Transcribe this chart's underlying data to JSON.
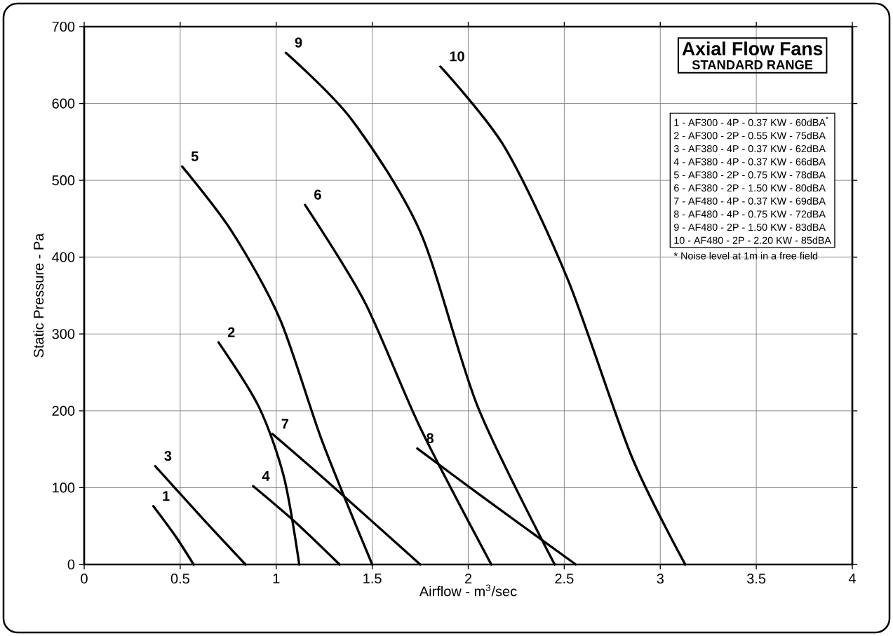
{
  "chart_data": {
    "type": "line",
    "title": "Axial Flow Fans",
    "subtitle": "STANDARD RANGE",
    "xlabel": "Airflow - m$^{3}$/sec",
    "ylabel": "Static Pressure - Pa",
    "xlim": [
      0,
      4
    ],
    "ylim": [
      0,
      700
    ],
    "xticks": [
      0,
      0.5,
      1,
      1.5,
      2,
      2.5,
      3,
      3.5,
      4
    ],
    "yticks": [
      0,
      100,
      200,
      300,
      400,
      500,
      600,
      700
    ],
    "grid": true,
    "series": [
      {
        "name": "1",
        "color": "#000000",
        "x": [
          0.36,
          0.475,
          0.57
        ],
        "values": [
          76,
          37,
          0
        ]
      },
      {
        "name": "2",
        "color": "#000000",
        "x": [
          0.7,
          0.91,
          1.04,
          1.12
        ],
        "values": [
          289,
          205,
          114,
          0
        ]
      },
      {
        "name": "3",
        "color": "#000000",
        "x": [
          0.37,
          0.62,
          0.84
        ],
        "values": [
          128,
          59,
          0
        ]
      },
      {
        "name": "4",
        "color": "#000000",
        "x": [
          0.88,
          1.1,
          1.33
        ],
        "values": [
          102,
          55,
          0
        ]
      },
      {
        "name": "5",
        "color": "#000000",
        "x": [
          0.51,
          0.77,
          1.02,
          1.24,
          1.5
        ],
        "values": [
          518,
          433,
          319,
          160,
          0
        ]
      },
      {
        "name": "6",
        "color": "#000000",
        "x": [
          1.15,
          1.46,
          1.75,
          2.12
        ],
        "values": [
          468,
          342,
          178,
          0
        ]
      },
      {
        "name": "7",
        "color": "#000000",
        "x": [
          0.98,
          1.28,
          1.75
        ],
        "values": [
          170,
          105,
          0
        ]
      },
      {
        "name": "8",
        "color": "#000000",
        "x": [
          1.735,
          2.08,
          2.56
        ],
        "values": [
          151,
          87,
          0
        ]
      },
      {
        "name": "9",
        "color": "#000000",
        "x": [
          1.05,
          1.39,
          1.75,
          2.05,
          2.45
        ],
        "values": [
          666,
          580,
          433,
          205,
          0
        ]
      },
      {
        "name": "10",
        "color": "#000000",
        "x": [
          1.855,
          2.19,
          2.52,
          2.85,
          3.13
        ],
        "values": [
          648,
          543,
          370,
          141,
          0
        ]
      }
    ],
    "annotations": [
      "1 - AF300 - 4P - 0.37 KW - 60dBA$^{*}$",
      "2 - AF300 - 2P - 0.55 KW - 75dBA",
      "3 - AF380 - 4P - 0.37 KW - 62dBA",
      "4 - AF380 - 4P - 0.37 KW - 66dBA",
      "5 - AF380 - 2P - 0.75 KW - 78dBA",
      "6 - AF380 - 2P - 1.50 KW - 80dBA",
      "7 - AF480 - 4P - 0.37 KW - 69dBA",
      "8 - AF480 - 4P - 0.75 KW - 72dBA",
      "9 - AF480 - 2P - 1.50 KW - 83dBA",
      "10 - AF480 - 2P - 2.20 KW - 85dBA",
      "* Noise level at 1m in a free field"
    ]
  }
}
